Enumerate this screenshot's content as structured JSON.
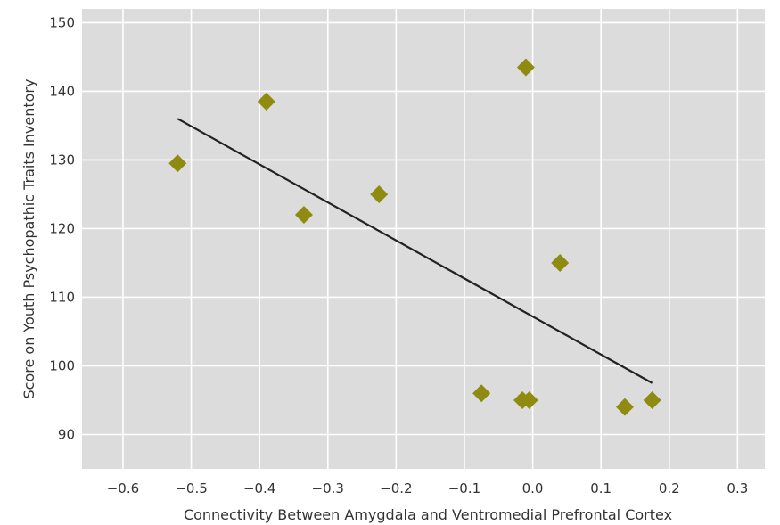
{
  "chart_data": {
    "type": "scatter",
    "title": "",
    "xlabel": "Connectivity Between Amygdala and Ventromedial Prefrontal Cortex",
    "ylabel": "Score on Youth Psychopathic Traits Inventory",
    "xlim": [
      -0.66,
      0.34
    ],
    "ylim": [
      85,
      152
    ],
    "x_ticks": [
      -0.6,
      -0.5,
      -0.4,
      -0.3,
      -0.2,
      -0.1,
      0.0,
      0.1,
      0.2,
      0.3
    ],
    "x_tick_labels": [
      "−0.6",
      "−0.5",
      "−0.4",
      "−0.3",
      "−0.2",
      "−0.1",
      "0.0",
      "0.1",
      "0.2",
      "0.3"
    ],
    "y_ticks": [
      90,
      100,
      110,
      120,
      130,
      140,
      150
    ],
    "y_tick_labels": [
      "90",
      "100",
      "110",
      "120",
      "130",
      "140",
      "150"
    ],
    "grid": true,
    "background_color": "#dcdcdc",
    "point_color": "#8f8b10",
    "line_color": "#222222",
    "points": [
      {
        "x": -0.52,
        "y": 129.5
      },
      {
        "x": -0.39,
        "y": 138.5
      },
      {
        "x": -0.335,
        "y": 122
      },
      {
        "x": -0.225,
        "y": 125
      },
      {
        "x": -0.075,
        "y": 96
      },
      {
        "x": -0.015,
        "y": 95
      },
      {
        "x": -0.005,
        "y": 95
      },
      {
        "x": -0.01,
        "y": 143.5
      },
      {
        "x": 0.04,
        "y": 115
      },
      {
        "x": 0.135,
        "y": 94
      },
      {
        "x": 0.175,
        "y": 95
      }
    ],
    "regression_line": {
      "x1": -0.52,
      "y1": 136,
      "x2": 0.175,
      "y2": 97.5
    }
  }
}
